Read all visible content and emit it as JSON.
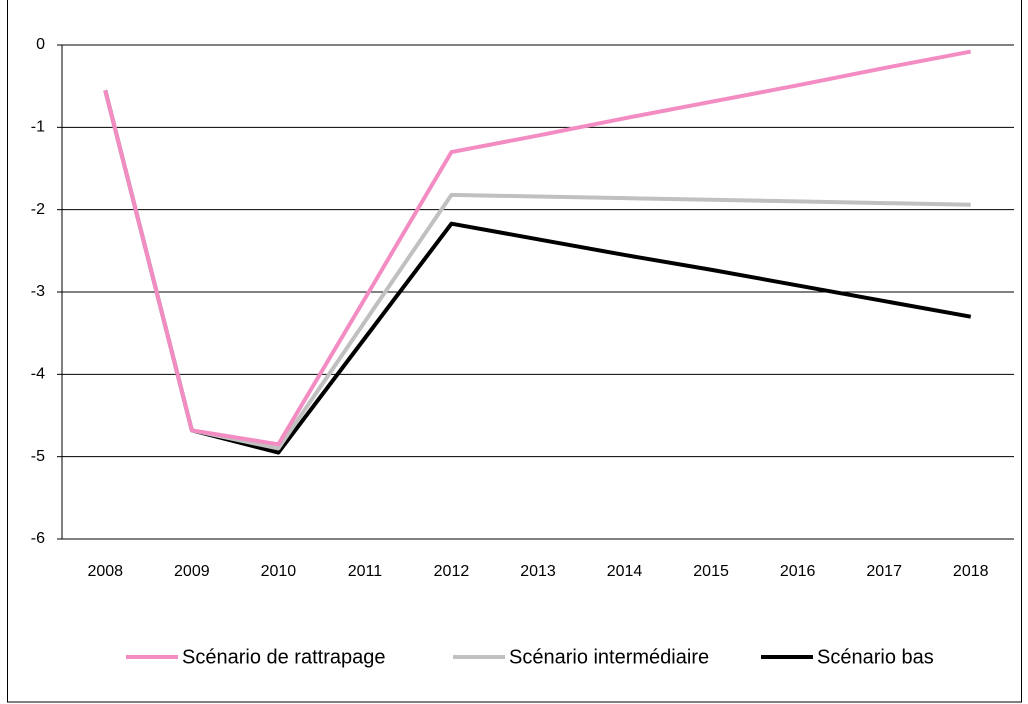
{
  "chart_data": {
    "type": "line",
    "categories": [
      "2008",
      "2009",
      "2010",
      "2011",
      "2012",
      "2013",
      "2014",
      "2015",
      "2016",
      "2017",
      "2018"
    ],
    "series": [
      {
        "name": "Scénario de rattrapage",
        "color": "#f28cc3",
        "values": [
          -0.55,
          -4.68,
          -4.85,
          -3.08,
          -1.3,
          -1.1,
          -0.89,
          -0.69,
          -0.49,
          -0.28,
          -0.08
        ]
      },
      {
        "name": "Scénario intermédiaire",
        "color": "#c0c0c0",
        "values": [
          -0.55,
          -4.68,
          -4.9,
          -3.36,
          -1.82,
          -1.84,
          -1.86,
          -1.88,
          -1.9,
          -1.92,
          -1.94
        ]
      },
      {
        "name": "Scénario bas",
        "color": "#000000",
        "values": [
          -0.55,
          -4.68,
          -4.95,
          -3.56,
          -2.17,
          -2.36,
          -2.55,
          -2.73,
          -2.92,
          -3.11,
          -3.3
        ]
      }
    ],
    "ylim": [
      -6,
      0
    ],
    "yticks": [
      -6,
      -5,
      -4,
      -3,
      -2,
      -1,
      0
    ],
    "grid": true
  }
}
